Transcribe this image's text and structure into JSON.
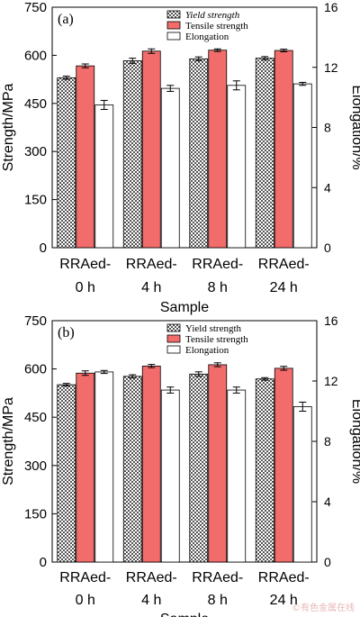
{
  "chart_data": [
    {
      "type": "bar",
      "panel_label": "(a)",
      "xlabel": "Sample",
      "ylabel": "Strength/MPa",
      "y2label": "Elongation/%",
      "categories": [
        [
          "RRAed-",
          "0 h"
        ],
        [
          "RRAed-",
          "4 h"
        ],
        [
          "RRAed-",
          "8 h"
        ],
        [
          "RRAed-",
          "24 h"
        ]
      ],
      "ylim": [
        0,
        750
      ],
      "yticks": [
        0,
        150,
        300,
        450,
        600,
        750
      ],
      "y2lim": [
        0,
        16
      ],
      "y2ticks": [
        0,
        4,
        8,
        12,
        16
      ],
      "legend_position": "top-center",
      "series": [
        {
          "name": "Yield strength",
          "axis": "left",
          "pattern": "crosshatch",
          "values": [
            530,
            583,
            589,
            591
          ],
          "errors": [
            5,
            8,
            6,
            5
          ]
        },
        {
          "name": "Tensile strength",
          "axis": "left",
          "color": "#f26c6c",
          "values": [
            567,
            613,
            616,
            615
          ],
          "errors": [
            6,
            7,
            4,
            4
          ]
        },
        {
          "name": "Elongation",
          "axis": "right",
          "color": "#ffffff",
          "values": [
            9.5,
            10.6,
            10.8,
            10.9
          ],
          "errors": [
            0.3,
            0.2,
            0.3,
            0.1
          ]
        }
      ]
    },
    {
      "type": "bar",
      "panel_label": "(b)",
      "xlabel": "Sample",
      "ylabel": "Strength/MPa",
      "y2label": "Elongation/%",
      "categories": [
        [
          "RRAed-",
          "0 h"
        ],
        [
          "RRAed-",
          "4 h"
        ],
        [
          "RRAed-",
          "8 h"
        ],
        [
          "RRAed-",
          "24 h"
        ]
      ],
      "ylim": [
        0,
        750
      ],
      "yticks": [
        0,
        150,
        300,
        450,
        600,
        750
      ],
      "y2lim": [
        0,
        16
      ],
      "y2ticks": [
        0,
        4,
        8,
        12,
        16
      ],
      "legend_position": "top-center",
      "series": [
        {
          "name": "Yield strength",
          "axis": "left",
          "pattern": "crosshatch",
          "values": [
            551,
            577,
            584,
            569
          ],
          "errors": [
            4,
            5,
            7,
            4
          ]
        },
        {
          "name": "Tensile strength",
          "axis": "left",
          "color": "#f26c6c",
          "values": [
            587,
            609,
            613,
            602
          ],
          "errors": [
            7,
            5,
            6,
            6
          ]
        },
        {
          "name": "Elongation",
          "axis": "right",
          "color": "#ffffff",
          "values": [
            12.6,
            11.4,
            11.4,
            10.3
          ],
          "errors": [
            0.1,
            0.2,
            0.2,
            0.3
          ]
        }
      ]
    }
  ],
  "watermark": "©有色金属在线"
}
